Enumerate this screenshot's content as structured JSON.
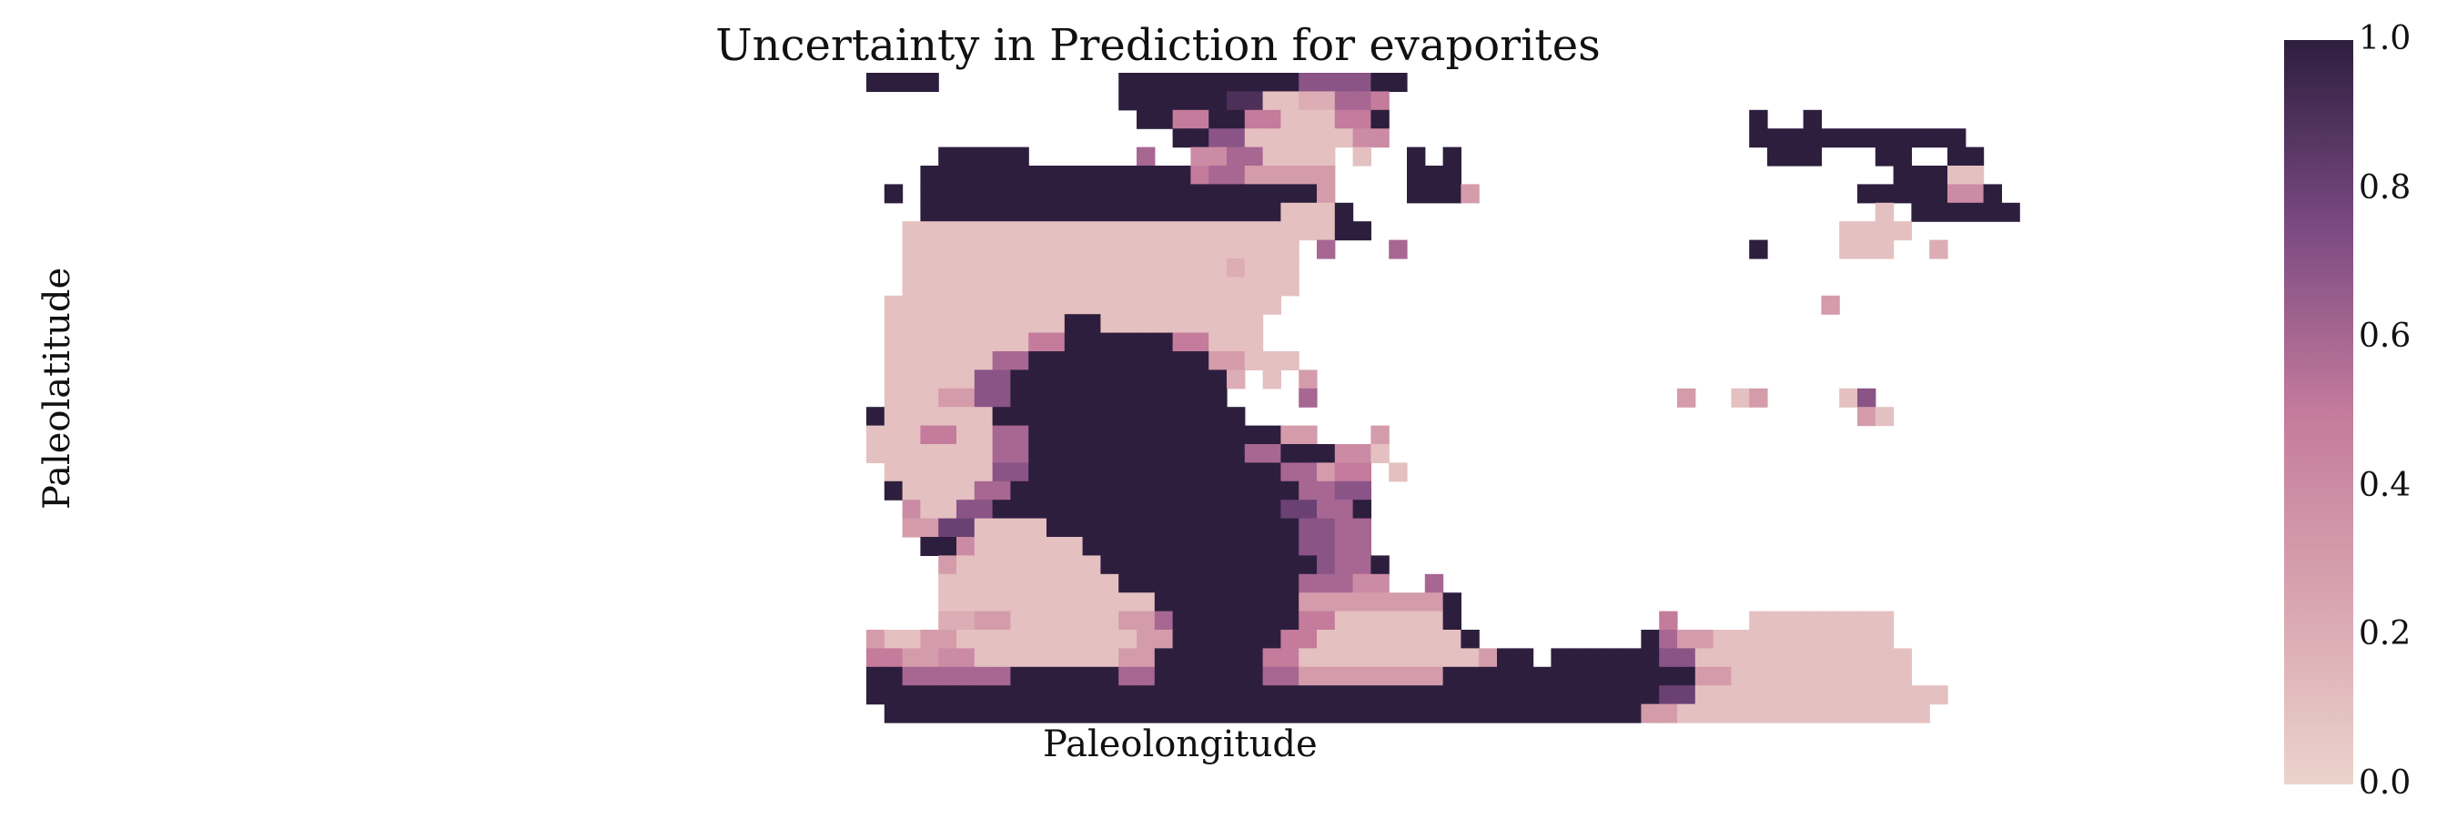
{
  "chart_data": {
    "type": "heatmap",
    "title": "Uncertainty in Prediction for evaporites",
    "xlabel": "Paleolongitude",
    "ylabel": "Paleolatitude",
    "colorbar": {
      "range": [
        0.0,
        1.0
      ],
      "ticks": [
        "0.0",
        "0.2",
        "0.4",
        "0.6",
        "0.8",
        "1.0"
      ],
      "low_color": "#ecd3cc",
      "mid_color": "#c47b9c",
      "high_color": "#2d1e3e"
    },
    "grid": false,
    "cell_value_rows": [
      {
        "row": 0,
        "runs": [
          [
            0,
            4,
            1.0
          ],
          [
            14,
            10,
            1.0
          ],
          [
            24,
            4,
            0.7
          ],
          [
            28,
            2,
            1.0
          ]
        ]
      },
      {
        "row": 1,
        "runs": [
          [
            14,
            2,
            1.0
          ],
          [
            16,
            4,
            1.0
          ],
          [
            20,
            2,
            0.9
          ],
          [
            22,
            2,
            0.1
          ],
          [
            24,
            2,
            0.2
          ],
          [
            26,
            2,
            0.6
          ],
          [
            28,
            1,
            0.5
          ]
        ]
      },
      {
        "row": 2,
        "runs": [
          [
            15,
            2,
            1.0
          ],
          [
            17,
            2,
            0.5
          ],
          [
            19,
            2,
            1.0
          ],
          [
            21,
            2,
            0.5
          ],
          [
            23,
            1,
            0.1
          ],
          [
            24,
            2,
            0.1
          ],
          [
            26,
            2,
            0.5
          ],
          [
            28,
            1,
            1.0
          ],
          [
            49,
            1,
            1.0
          ],
          [
            52,
            1,
            1.0
          ]
        ]
      },
      {
        "row": 3,
        "runs": [
          [
            17,
            2,
            1.0
          ],
          [
            19,
            2,
            0.7
          ],
          [
            21,
            3,
            0.1
          ],
          [
            24,
            3,
            0.1
          ],
          [
            27,
            2,
            0.4
          ],
          [
            49,
            12,
            1.0
          ]
        ]
      },
      {
        "row": 4,
        "runs": [
          [
            4,
            5,
            1.0
          ],
          [
            15,
            1,
            0.6
          ],
          [
            18,
            2,
            0.4
          ],
          [
            20,
            2,
            0.6
          ],
          [
            22,
            4,
            0.1
          ],
          [
            27,
            1,
            0.1
          ],
          [
            30,
            1,
            1.0
          ],
          [
            32,
            1,
            1.0
          ],
          [
            50,
            3,
            1.0
          ],
          [
            56,
            2,
            1.0
          ],
          [
            60,
            2,
            1.0
          ]
        ]
      },
      {
        "row": 5,
        "runs": [
          [
            3,
            15,
            1.0
          ],
          [
            18,
            1,
            0.5
          ],
          [
            19,
            2,
            0.6
          ],
          [
            21,
            5,
            0.3
          ],
          [
            30,
            3,
            1.0
          ],
          [
            57,
            3,
            1.0
          ],
          [
            60,
            2,
            0.1
          ]
        ]
      },
      {
        "row": 6,
        "runs": [
          [
            1,
            1,
            1.0
          ],
          [
            3,
            16,
            1.0
          ],
          [
            19,
            6,
            1.0
          ],
          [
            25,
            1,
            0.3
          ],
          [
            30,
            3,
            1.0
          ],
          [
            33,
            1,
            0.3
          ],
          [
            55,
            5,
            1.0
          ],
          [
            60,
            2,
            0.4
          ],
          [
            62,
            1,
            1.0
          ]
        ]
      },
      {
        "row": 7,
        "runs": [
          [
            3,
            20,
            1.0
          ],
          [
            23,
            3,
            0.1
          ],
          [
            26,
            1,
            1.0
          ],
          [
            56,
            1,
            0.1
          ],
          [
            58,
            6,
            1.0
          ]
        ]
      },
      {
        "row": 8,
        "runs": [
          [
            2,
            8,
            0.1
          ],
          [
            10,
            10,
            0.1
          ],
          [
            20,
            6,
            0.1
          ],
          [
            26,
            2,
            1.0
          ],
          [
            54,
            4,
            0.1
          ]
        ]
      },
      {
        "row": 9,
        "runs": [
          [
            2,
            20,
            0.1
          ],
          [
            22,
            1,
            0.1
          ],
          [
            23,
            1,
            0.1
          ],
          [
            25,
            1,
            0.6
          ],
          [
            29,
            1,
            0.6
          ],
          [
            49,
            1,
            1.0
          ],
          [
            54,
            3,
            0.1
          ],
          [
            59,
            1,
            0.2
          ]
        ]
      },
      {
        "row": 10,
        "runs": [
          [
            2,
            18,
            0.1
          ],
          [
            20,
            1,
            0.2
          ],
          [
            21,
            3,
            0.1
          ]
        ]
      },
      {
        "row": 11,
        "runs": [
          [
            2,
            22,
            0.1
          ]
        ]
      },
      {
        "row": 12,
        "runs": [
          [
            1,
            22,
            0.1
          ],
          [
            53,
            1,
            0.3
          ]
        ]
      },
      {
        "row": 13,
        "runs": [
          [
            1,
            10,
            0.1
          ],
          [
            11,
            2,
            1.0
          ],
          [
            13,
            4,
            0.1
          ],
          [
            17,
            5,
            0.1
          ]
        ]
      },
      {
        "row": 14,
        "runs": [
          [
            1,
            8,
            0.1
          ],
          [
            9,
            2,
            0.5
          ],
          [
            11,
            6,
            1.0
          ],
          [
            17,
            2,
            0.5
          ],
          [
            19,
            3,
            0.1
          ]
        ]
      },
      {
        "row": 15,
        "runs": [
          [
            1,
            6,
            0.1
          ],
          [
            7,
            2,
            0.6
          ],
          [
            9,
            10,
            1.0
          ],
          [
            19,
            2,
            0.3
          ],
          [
            21,
            2,
            0.1
          ],
          [
            23,
            1,
            0.1
          ]
        ]
      },
      {
        "row": 16,
        "runs": [
          [
            1,
            5,
            0.1
          ],
          [
            6,
            2,
            0.7
          ],
          [
            8,
            12,
            1.0
          ],
          [
            20,
            1,
            0.2
          ],
          [
            22,
            1,
            0.1
          ],
          [
            24,
            1,
            0.3
          ]
        ]
      },
      {
        "row": 17,
        "runs": [
          [
            1,
            3,
            0.1
          ],
          [
            4,
            2,
            0.3
          ],
          [
            6,
            2,
            0.7
          ],
          [
            8,
            12,
            1.0
          ],
          [
            24,
            1,
            0.6
          ],
          [
            45,
            1,
            0.3
          ],
          [
            48,
            1,
            0.1
          ],
          [
            49,
            1,
            0.3
          ],
          [
            54,
            1,
            0.1
          ],
          [
            55,
            1,
            0.7
          ]
        ]
      },
      {
        "row": 18,
        "runs": [
          [
            0,
            1,
            1.0
          ],
          [
            1,
            6,
            0.1
          ],
          [
            7,
            2,
            1.0
          ],
          [
            9,
            12,
            1.0
          ],
          [
            55,
            1,
            0.3
          ],
          [
            56,
            1,
            0.1
          ]
        ]
      },
      {
        "row": 19,
        "runs": [
          [
            0,
            3,
            0.1
          ],
          [
            3,
            2,
            0.5
          ],
          [
            5,
            2,
            0.1
          ],
          [
            7,
            2,
            0.6
          ],
          [
            9,
            14,
            1.0
          ],
          [
            23,
            2,
            0.3
          ],
          [
            28,
            1,
            0.3
          ]
        ]
      },
      {
        "row": 20,
        "runs": [
          [
            0,
            7,
            0.1
          ],
          [
            7,
            2,
            0.6
          ],
          [
            9,
            12,
            1.0
          ],
          [
            21,
            2,
            0.6
          ],
          [
            23,
            3,
            1.0
          ],
          [
            26,
            2,
            0.4
          ],
          [
            28,
            1,
            0.1
          ]
        ]
      },
      {
        "row": 21,
        "runs": [
          [
            1,
            6,
            0.1
          ],
          [
            7,
            2,
            0.7
          ],
          [
            9,
            14,
            1.0
          ],
          [
            23,
            2,
            0.6
          ],
          [
            25,
            1,
            0.3
          ],
          [
            26,
            2,
            0.5
          ],
          [
            29,
            1,
            0.1
          ]
        ]
      },
      {
        "row": 22,
        "runs": [
          [
            1,
            1,
            1.0
          ],
          [
            2,
            4,
            0.1
          ],
          [
            6,
            2,
            0.6
          ],
          [
            8,
            16,
            1.0
          ],
          [
            24,
            2,
            0.6
          ],
          [
            26,
            2,
            0.7
          ]
        ]
      },
      {
        "row": 23,
        "runs": [
          [
            2,
            1,
            0.4
          ],
          [
            3,
            2,
            0.1
          ],
          [
            5,
            2,
            0.7
          ],
          [
            7,
            16,
            1.0
          ],
          [
            23,
            2,
            0.8
          ],
          [
            25,
            2,
            0.6
          ],
          [
            27,
            1,
            1.0
          ]
        ]
      },
      {
        "row": 24,
        "runs": [
          [
            2,
            2,
            0.3
          ],
          [
            4,
            2,
            0.8
          ],
          [
            6,
            4,
            0.1
          ],
          [
            10,
            14,
            1.0
          ],
          [
            24,
            2,
            0.7
          ],
          [
            26,
            2,
            0.6
          ]
        ]
      },
      {
        "row": 25,
        "runs": [
          [
            3,
            2,
            1.0
          ],
          [
            5,
            1,
            0.4
          ],
          [
            6,
            6,
            0.1
          ],
          [
            12,
            12,
            1.0
          ],
          [
            24,
            2,
            0.7
          ],
          [
            26,
            2,
            0.6
          ]
        ]
      },
      {
        "row": 26,
        "runs": [
          [
            4,
            1,
            0.3
          ],
          [
            5,
            8,
            0.1
          ],
          [
            13,
            12,
            1.0
          ],
          [
            25,
            1,
            0.7
          ],
          [
            26,
            2,
            0.6
          ],
          [
            28,
            1,
            1.0
          ]
        ]
      },
      {
        "row": 27,
        "runs": [
          [
            4,
            10,
            0.1
          ],
          [
            14,
            10,
            1.0
          ],
          [
            24,
            3,
            0.6
          ],
          [
            27,
            2,
            0.4
          ],
          [
            31,
            1,
            0.6
          ]
        ]
      },
      {
        "row": 28,
        "runs": [
          [
            4,
            12,
            0.1
          ],
          [
            16,
            8,
            1.0
          ],
          [
            24,
            8,
            0.3
          ],
          [
            32,
            1,
            1.0
          ]
        ]
      },
      {
        "row": 29,
        "runs": [
          [
            4,
            2,
            0.2
          ],
          [
            6,
            2,
            0.3
          ],
          [
            8,
            6,
            0.1
          ],
          [
            14,
            2,
            0.3
          ],
          [
            16,
            1,
            0.6
          ],
          [
            17,
            7,
            1.0
          ],
          [
            24,
            2,
            0.5
          ],
          [
            26,
            6,
            0.1
          ],
          [
            32,
            1,
            1.0
          ],
          [
            44,
            1,
            0.5
          ],
          [
            49,
            8,
            0.1
          ]
        ]
      },
      {
        "row": 30,
        "runs": [
          [
            0,
            1,
            0.3
          ],
          [
            1,
            2,
            0.1
          ],
          [
            3,
            2,
            0.3
          ],
          [
            5,
            10,
            0.1
          ],
          [
            15,
            2,
            0.3
          ],
          [
            17,
            6,
            1.0
          ],
          [
            23,
            2,
            0.5
          ],
          [
            25,
            8,
            0.1
          ],
          [
            33,
            1,
            1.0
          ],
          [
            43,
            1,
            1.0
          ],
          [
            44,
            1,
            0.6
          ],
          [
            45,
            2,
            0.3
          ],
          [
            47,
            10,
            0.1
          ]
        ]
      },
      {
        "row": 31,
        "runs": [
          [
            0,
            2,
            0.5
          ],
          [
            2,
            2,
            0.3
          ],
          [
            4,
            2,
            0.4
          ],
          [
            6,
            8,
            0.1
          ],
          [
            14,
            2,
            0.3
          ],
          [
            16,
            6,
            1.0
          ],
          [
            22,
            2,
            0.5
          ],
          [
            24,
            10,
            0.1
          ],
          [
            34,
            1,
            0.3
          ],
          [
            35,
            2,
            1.0
          ],
          [
            38,
            4,
            1.0
          ],
          [
            42,
            2,
            1.0
          ],
          [
            44,
            2,
            0.7
          ],
          [
            46,
            12,
            0.1
          ]
        ]
      },
      {
        "row": 32,
        "runs": [
          [
            0,
            2,
            1.0
          ],
          [
            2,
            6,
            0.6
          ],
          [
            8,
            6,
            1.0
          ],
          [
            14,
            2,
            0.6
          ],
          [
            16,
            6,
            1.0
          ],
          [
            22,
            2,
            0.6
          ],
          [
            24,
            8,
            0.3
          ],
          [
            32,
            2,
            1.0
          ],
          [
            34,
            10,
            1.0
          ],
          [
            44,
            2,
            1.0
          ],
          [
            46,
            2,
            0.3
          ],
          [
            48,
            10,
            0.1
          ]
        ]
      },
      {
        "row": 33,
        "runs": [
          [
            0,
            2,
            1.0
          ],
          [
            2,
            42,
            1.0
          ],
          [
            44,
            2,
            0.8
          ],
          [
            46,
            14,
            0.1
          ]
        ]
      },
      {
        "row": 34,
        "runs": [
          [
            1,
            42,
            1.0
          ],
          [
            43,
            2,
            0.3
          ],
          [
            45,
            14,
            0.1
          ]
        ]
      }
    ]
  }
}
